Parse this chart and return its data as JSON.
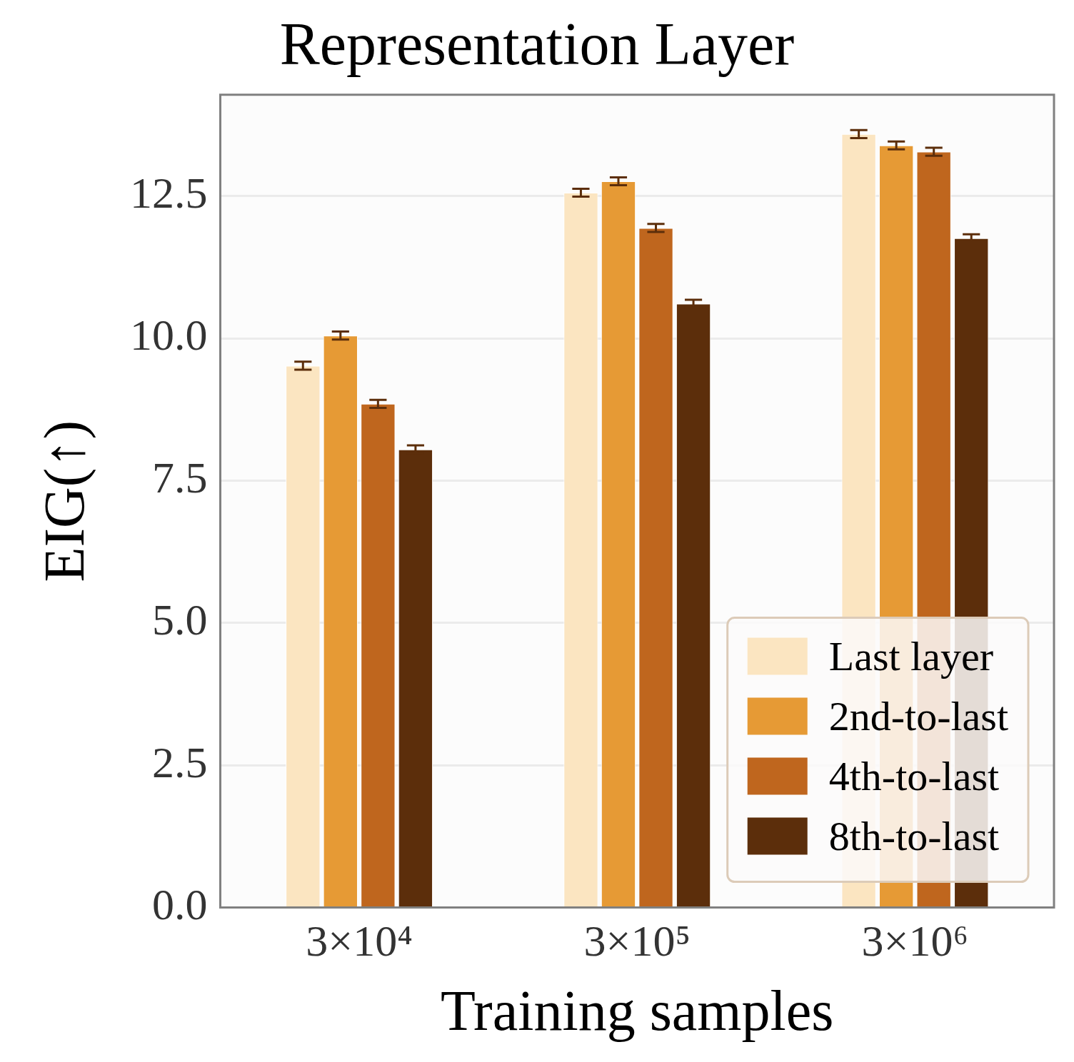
{
  "chart_data": {
    "type": "bar",
    "title": "Representation Layer",
    "xlabel": "Training samples",
    "ylabel": "EIG(↑)",
    "categories": [
      "3×10⁴",
      "3×10⁵",
      "3×10⁶"
    ],
    "series": [
      {
        "name": "Last layer",
        "color": "#fbe5c1",
        "values": [
          9.52,
          12.56,
          13.59
        ],
        "errors": [
          0.07,
          0.07,
          0.07
        ]
      },
      {
        "name": "2nd-to-last",
        "color": "#e69a35",
        "values": [
          10.05,
          12.76,
          13.39
        ],
        "errors": [
          0.07,
          0.07,
          0.07
        ]
      },
      {
        "name": "4th-to-last",
        "color": "#bf661e",
        "values": [
          8.85,
          11.94,
          13.28
        ],
        "errors": [
          0.07,
          0.07,
          0.07
        ]
      },
      {
        "name": "8th-to-last",
        "color": "#5c2e0b",
        "values": [
          8.05,
          10.61,
          11.76
        ],
        "errors": [
          0.07,
          0.07,
          0.07
        ]
      }
    ],
    "ylim": [
      0,
      14.28
    ],
    "yticks": [
      {
        "value": 0,
        "label": "0.0"
      },
      {
        "value": 2.5,
        "label": "2.5"
      },
      {
        "value": 5,
        "label": "5.0"
      },
      {
        "value": 7.5,
        "label": "7.5"
      },
      {
        "value": 10,
        "label": "10.0"
      },
      {
        "value": 12.5,
        "label": "12.5"
      }
    ],
    "grid": "y",
    "legend": "bottom right"
  }
}
